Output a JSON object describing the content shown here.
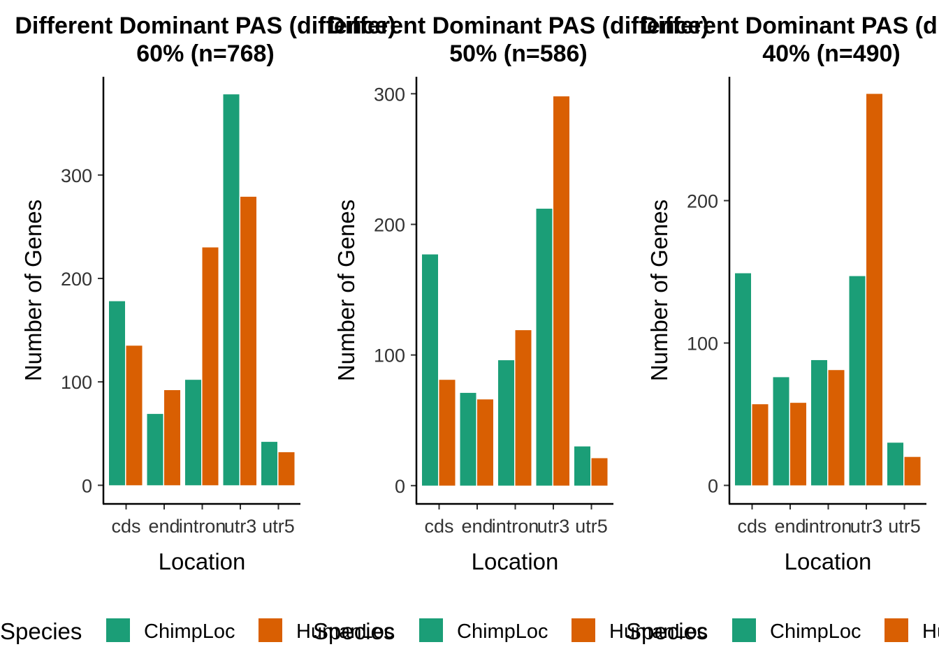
{
  "chart_data": [
    {
      "type": "bar",
      "title_line1": "Different Dominant PAS (diffence)",
      "title_line2": "60% (n=768)",
      "xlabel": "Location",
      "ylabel": "Number of Genes",
      "categories": [
        "cds",
        "end",
        "intron",
        "utr3",
        "utr5"
      ],
      "series": [
        {
          "name": "ChimpLoc",
          "values": [
            178,
            69,
            102,
            378,
            42
          ]
        },
        {
          "name": "HumanLoc",
          "values": [
            135,
            92,
            230,
            279,
            32
          ]
        }
      ],
      "yticks": [
        0,
        100,
        200,
        300
      ],
      "ylim": [
        -18,
        395
      ],
      "legend": {
        "title": "Species",
        "labels": [
          "ChimpLoc",
          "HumanLoc"
        ],
        "position": "bottom"
      }
    },
    {
      "type": "bar",
      "title_line1": "Different Dominant PAS (diffence)",
      "title_line2": "50% (n=586)",
      "xlabel": "Location",
      "ylabel": "Number of Genes",
      "categories": [
        "cds",
        "end",
        "intron",
        "utr3",
        "utr5"
      ],
      "series": [
        {
          "name": "ChimpLoc",
          "values": [
            177,
            71,
            96,
            212,
            30
          ]
        },
        {
          "name": "HumanLoc",
          "values": [
            81,
            66,
            119,
            298,
            21
          ]
        }
      ],
      "yticks": [
        0,
        100,
        200,
        300
      ],
      "ylim": [
        -14,
        313
      ],
      "legend": {
        "title": "Species",
        "labels": [
          "ChimpLoc",
          "HumanLoc"
        ],
        "position": "bottom"
      }
    },
    {
      "type": "bar",
      "title_line1": "Different Dominant PAS (diffence)",
      "title_line2": "40% (n=490)",
      "xlabel": "Location",
      "ylabel": "Number of Genes",
      "categories": [
        "cds",
        "end",
        "intron",
        "utr3",
        "utr5"
      ],
      "series": [
        {
          "name": "ChimpLoc",
          "values": [
            149,
            76,
            88,
            147,
            30
          ]
        },
        {
          "name": "HumanLoc",
          "values": [
            57,
            58,
            81,
            275,
            20
          ]
        }
      ],
      "yticks": [
        0,
        100,
        200
      ],
      "ylim": [
        -13,
        287
      ],
      "legend": {
        "title": "Species",
        "labels": [
          "ChimpLoc",
          "HumanLoc"
        ],
        "position": "bottom"
      }
    }
  ],
  "colors": {
    "ChimpLoc": "#1b9e77",
    "HumanLoc": "#d95f02"
  }
}
